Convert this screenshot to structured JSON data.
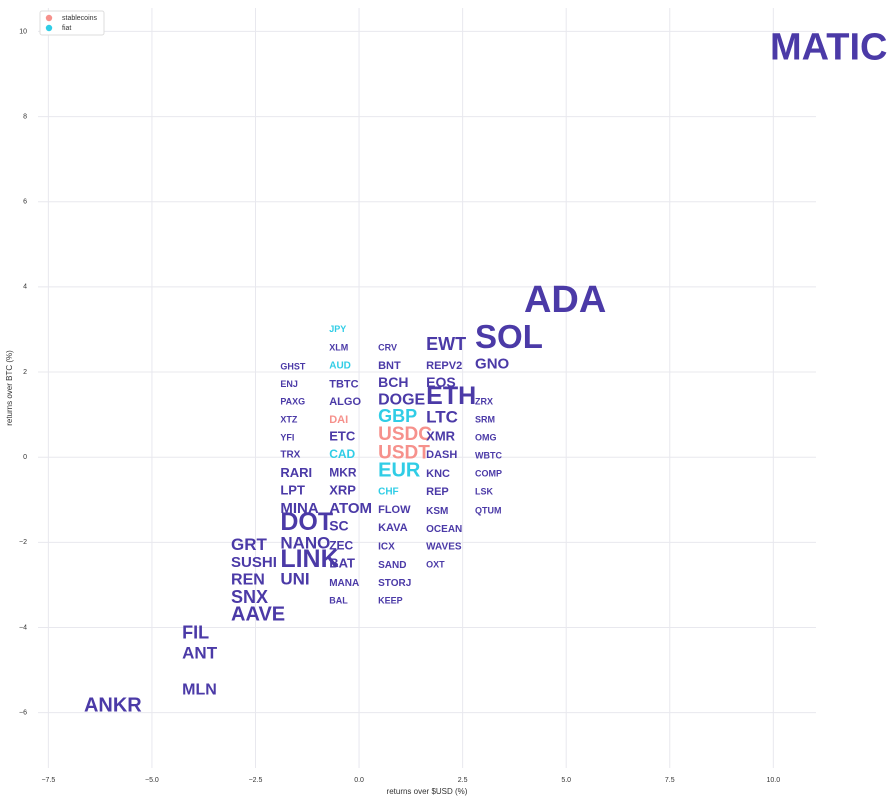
{
  "chart_data": {
    "type": "text-scatter",
    "xlabel": "returns over $USD (%)",
    "ylabel": "returns over BTC (%)",
    "xlim": [
      -7.75,
      11.03
    ],
    "ylim": [
      -7.3,
      10.55
    ],
    "xticks": [
      {
        "value": -7.5,
        "label": "−7.5"
      },
      {
        "value": -5,
        "label": "−5.0"
      },
      {
        "value": -2.5,
        "label": "−2.5"
      },
      {
        "value": 0,
        "label": "0.0"
      },
      2.5,
      {
        "value": 5,
        "label": "5.0"
      },
      7.5,
      {
        "value": 10,
        "label": "10.0"
      }
    ],
    "yticks": [
      {
        "value": -6,
        "label": "−6"
      },
      {
        "value": -4,
        "label": "−4"
      },
      {
        "value": -2,
        "label": "−2"
      },
      0,
      2,
      4,
      6,
      8,
      10
    ],
    "grid": true,
    "legend": "upper left",
    "series": [
      {
        "name": "stablecoins",
        "color": "#f6918c",
        "points": [
          {
            "label": "DAI",
            "x": -0.72,
            "y": 0.87,
            "size": 11
          },
          {
            "label": "USDC",
            "x": 0.46,
            "y": 0.52,
            "size": 19
          },
          {
            "label": "USDT",
            "x": 0.46,
            "y": 0.09,
            "size": 19
          }
        ]
      },
      {
        "name": "fiat",
        "color": "#30cde6",
        "points": [
          {
            "label": "JPY",
            "x": -0.72,
            "y": 3.0,
            "size": 9
          },
          {
            "label": "AUD",
            "x": -0.72,
            "y": 2.14,
            "size": 10
          },
          {
            "label": "GBP",
            "x": 0.46,
            "y": 0.94,
            "size": 18
          },
          {
            "label": "CAD",
            "x": -0.72,
            "y": 0.05,
            "size": 12
          },
          {
            "label": "EUR",
            "x": 0.46,
            "y": -0.33,
            "size": 20
          },
          {
            "label": "CHF",
            "x": 0.46,
            "y": -0.82,
            "size": 10
          }
        ]
      },
      {
        "color": "#4b3aa7",
        "points": [
          {
            "label": "MATIC",
            "x": 9.92,
            "y": 9.58,
            "size": 38
          },
          {
            "label": "ADA",
            "x": 3.98,
            "y": 3.64,
            "size": 38
          },
          {
            "label": "SOL",
            "x": 2.8,
            "y": 2.77,
            "size": 33
          },
          {
            "label": "EWT",
            "x": 1.62,
            "y": 2.63,
            "size": 18
          },
          {
            "label": "XLM",
            "x": -0.72,
            "y": 2.56,
            "size": 9
          },
          {
            "label": "CRV",
            "x": 0.46,
            "y": 2.56,
            "size": 9
          },
          {
            "label": "GNO",
            "x": 2.8,
            "y": 2.18,
            "size": 15
          },
          {
            "label": "REPV2",
            "x": 1.62,
            "y": 2.14,
            "size": 11
          },
          {
            "label": "GHST",
            "x": -1.9,
            "y": 2.11,
            "size": 9
          },
          {
            "label": "BNT",
            "x": 0.46,
            "y": 2.14,
            "size": 11
          },
          {
            "label": "TBTC",
            "x": -0.72,
            "y": 1.71,
            "size": 11
          },
          {
            "label": "ENJ",
            "x": -1.9,
            "y": 1.71,
            "size": 9
          },
          {
            "label": "BCH",
            "x": 0.46,
            "y": 1.74,
            "size": 14
          },
          {
            "label": "EOS",
            "x": 1.62,
            "y": 1.74,
            "size": 14
          },
          {
            "label": "ETH",
            "x": 1.62,
            "y": 1.41,
            "size": 25
          },
          {
            "label": "DOGE",
            "x": 0.46,
            "y": 1.34,
            "size": 16
          },
          {
            "label": "ALGO",
            "x": -0.72,
            "y": 1.29,
            "size": 11
          },
          {
            "label": "PAXG",
            "x": -1.9,
            "y": 1.29,
            "size": 9
          },
          {
            "label": "ZRX",
            "x": 2.8,
            "y": 1.29,
            "size": 9
          },
          {
            "label": "LTC",
            "x": 1.62,
            "y": 0.92,
            "size": 17
          },
          {
            "label": "XTZ",
            "x": -1.9,
            "y": 0.87,
            "size": 9
          },
          {
            "label": "SRM",
            "x": 2.8,
            "y": 0.87,
            "size": 9
          },
          {
            "label": "XMR",
            "x": 1.62,
            "y": 0.47,
            "size": 13
          },
          {
            "label": "ETC",
            "x": -0.72,
            "y": 0.47,
            "size": 13
          },
          {
            "label": "YFI",
            "x": -1.9,
            "y": 0.45,
            "size": 9
          },
          {
            "label": "OMG",
            "x": 2.8,
            "y": 0.45,
            "size": 9
          },
          {
            "label": "TRX",
            "x": -1.9,
            "y": 0.05,
            "size": 10
          },
          {
            "label": "DASH",
            "x": 1.62,
            "y": 0.05,
            "size": 11
          },
          {
            "label": "WBTC",
            "x": 2.8,
            "y": 0.02,
            "size": 9
          },
          {
            "label": "RARI",
            "x": -1.9,
            "y": -0.38,
            "size": 13
          },
          {
            "label": "MKR",
            "x": -0.72,
            "y": -0.38,
            "size": 12
          },
          {
            "label": "KNC",
            "x": 1.62,
            "y": -0.4,
            "size": 11
          },
          {
            "label": "COMP",
            "x": 2.8,
            "y": -0.4,
            "size": 9
          },
          {
            "label": "LPT",
            "x": -1.9,
            "y": -0.8,
            "size": 13
          },
          {
            "label": "XRP",
            "x": -0.72,
            "y": -0.8,
            "size": 13
          },
          {
            "label": "REP",
            "x": 1.62,
            "y": -0.82,
            "size": 11
          },
          {
            "label": "LSK",
            "x": 2.8,
            "y": -0.82,
            "size": 9
          },
          {
            "label": "MINA",
            "x": -1.9,
            "y": -1.22,
            "size": 15
          },
          {
            "label": "ATOM",
            "x": -0.72,
            "y": -1.22,
            "size": 15
          },
          {
            "label": "FLOW",
            "x": 0.46,
            "y": -1.24,
            "size": 11
          },
          {
            "label": "KSM",
            "x": 1.62,
            "y": -1.27,
            "size": 10
          },
          {
            "label": "QTUM",
            "x": 2.8,
            "y": -1.27,
            "size": 9
          },
          {
            "label": "DOT",
            "x": -1.9,
            "y": -1.55,
            "size": 25
          },
          {
            "label": "SC",
            "x": -0.72,
            "y": -1.64,
            "size": 14
          },
          {
            "label": "KAVA",
            "x": 0.46,
            "y": -1.67,
            "size": 11
          },
          {
            "label": "OCEAN",
            "x": 1.62,
            "y": -1.69,
            "size": 10
          },
          {
            "label": "GRT",
            "x": -3.09,
            "y": -2.07,
            "size": 17
          },
          {
            "label": "NANO",
            "x": -1.9,
            "y": -2.04,
            "size": 17
          },
          {
            "label": "ZEC",
            "x": -0.72,
            "y": -2.09,
            "size": 12
          },
          {
            "label": "ICX",
            "x": 0.46,
            "y": -2.11,
            "size": 10
          },
          {
            "label": "WAVES",
            "x": 1.62,
            "y": -2.11,
            "size": 10
          },
          {
            "label": "LINK",
            "x": -1.9,
            "y": -2.42,
            "size": 25
          },
          {
            "label": "SUSHI",
            "x": -3.09,
            "y": -2.49,
            "size": 15
          },
          {
            "label": "BAT",
            "x": -0.72,
            "y": -2.51,
            "size": 13
          },
          {
            "label": "SAND",
            "x": 0.46,
            "y": -2.54,
            "size": 10
          },
          {
            "label": "OXT",
            "x": 1.62,
            "y": -2.54,
            "size": 9
          },
          {
            "label": "REN",
            "x": -3.09,
            "y": -2.89,
            "size": 16
          },
          {
            "label": "UNI",
            "x": -1.9,
            "y": -2.89,
            "size": 17
          },
          {
            "label": "MANA",
            "x": -0.72,
            "y": -2.96,
            "size": 10
          },
          {
            "label": "STORJ",
            "x": 0.46,
            "y": -2.96,
            "size": 10
          },
          {
            "label": "SNX",
            "x": -3.09,
            "y": -3.31,
            "size": 18
          },
          {
            "label": "BAL",
            "x": -0.72,
            "y": -3.38,
            "size": 9
          },
          {
            "label": "KEEP",
            "x": 0.46,
            "y": -3.38,
            "size": 9
          },
          {
            "label": "AAVE",
            "x": -3.09,
            "y": -3.71,
            "size": 20
          },
          {
            "label": "FIL",
            "x": -4.27,
            "y": -4.15,
            "size": 18
          },
          {
            "label": "ANT",
            "x": -4.27,
            "y": -4.62,
            "size": 17
          },
          {
            "label": "MLN",
            "x": -4.27,
            "y": -5.47,
            "size": 16
          },
          {
            "label": "ANKR",
            "x": -6.64,
            "y": -5.85,
            "size": 20
          }
        ]
      }
    ]
  }
}
